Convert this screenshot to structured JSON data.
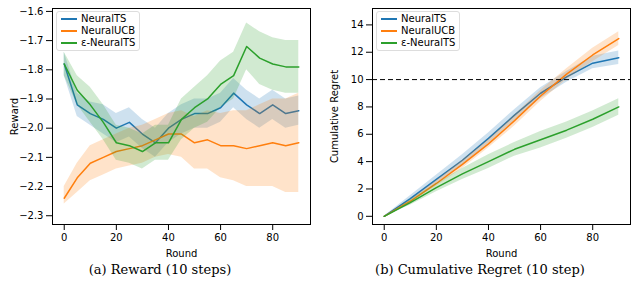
{
  "chart_data": [
    {
      "type": "line",
      "title": "(a) Reward (10 steps)",
      "x_label": "Round",
      "y_label": "Reward",
      "xlim": [
        -4.5,
        94.5
      ],
      "xticks": [
        0,
        20,
        40,
        60,
        80
      ],
      "ylim": [
        -2.33,
        -1.59
      ],
      "yticks": [
        {
          "value": -2.3,
          "label": "−2.3"
        },
        {
          "value": -2.2,
          "label": "−2.2"
        },
        {
          "value": -2.1,
          "label": "−2.1"
        },
        {
          "value": -2.0,
          "label": "−2.0"
        },
        {
          "value": -1.9,
          "label": "−1.9"
        },
        {
          "value": -1.8,
          "label": "−1.8"
        },
        {
          "value": -1.7,
          "label": "−1.7"
        },
        {
          "value": -1.6,
          "label": "−1.6"
        }
      ],
      "legend": "upper left",
      "x": [
        0,
        5,
        10,
        15,
        20,
        25,
        30,
        35,
        40,
        45,
        50,
        55,
        60,
        65,
        70,
        75,
        80,
        85,
        90
      ],
      "series": [
        {
          "name": "NeuralTS",
          "color": "#1f77b4",
          "values": [
            -1.78,
            -1.92,
            -1.95,
            -1.97,
            -2.0,
            -1.98,
            -2.02,
            -2.05,
            -2.0,
            -1.97,
            -1.95,
            -1.95,
            -1.93,
            -1.88,
            -1.92,
            -1.95,
            -1.92,
            -1.95,
            -1.94
          ],
          "lower": [
            -1.82,
            -1.96,
            -1.99,
            -2.02,
            -2.05,
            -2.03,
            -2.07,
            -2.1,
            -2.05,
            -2.02,
            -2.0,
            -2.0,
            -1.98,
            -1.93,
            -1.97,
            -2.0,
            -1.97,
            -2.0,
            -1.99
          ],
          "upper": [
            -1.74,
            -1.88,
            -1.91,
            -1.92,
            -1.95,
            -1.93,
            -1.97,
            -2.0,
            -1.95,
            -1.92,
            -1.9,
            -1.9,
            -1.88,
            -1.83,
            -1.87,
            -1.9,
            -1.87,
            -1.9,
            -1.89
          ]
        },
        {
          "name": "NeuralUCB",
          "color": "#ff7f0e",
          "values": [
            -2.24,
            -2.17,
            -2.12,
            -2.1,
            -2.08,
            -2.07,
            -2.06,
            -2.04,
            -2.02,
            -2.02,
            -2.05,
            -2.04,
            -2.06,
            -2.06,
            -2.07,
            -2.06,
            -2.05,
            -2.06,
            -2.05
          ],
          "lower": [
            -2.26,
            -2.22,
            -2.18,
            -2.16,
            -2.14,
            -2.13,
            -2.12,
            -2.1,
            -2.09,
            -2.1,
            -2.14,
            -2.14,
            -2.17,
            -2.18,
            -2.2,
            -2.2,
            -2.2,
            -2.22,
            -2.22
          ],
          "upper": [
            -2.2,
            -2.12,
            -2.06,
            -2.04,
            -2.02,
            -2.0,
            -1.99,
            -1.97,
            -1.95,
            -1.94,
            -1.96,
            -1.94,
            -1.95,
            -1.94,
            -1.94,
            -1.92,
            -1.9,
            -1.9,
            -1.88
          ]
        },
        {
          "name": "ε-NeuralTS",
          "color": "#2ca02c",
          "values": [
            -1.78,
            -1.87,
            -1.92,
            -1.98,
            -2.05,
            -2.06,
            -2.08,
            -2.05,
            -2.05,
            -1.97,
            -1.93,
            -1.9,
            -1.85,
            -1.82,
            -1.72,
            -1.76,
            -1.78,
            -1.79,
            -1.79
          ],
          "lower": [
            -1.82,
            -1.92,
            -1.98,
            -2.04,
            -2.11,
            -2.12,
            -2.14,
            -2.11,
            -2.11,
            -2.04,
            -2.0,
            -1.98,
            -1.93,
            -1.9,
            -1.8,
            -1.85,
            -1.87,
            -1.88,
            -1.88
          ],
          "upper": [
            -1.74,
            -1.82,
            -1.86,
            -1.92,
            -1.99,
            -2.0,
            -2.02,
            -1.99,
            -1.99,
            -1.9,
            -1.86,
            -1.82,
            -1.77,
            -1.74,
            -1.64,
            -1.67,
            -1.69,
            -1.7,
            -1.7
          ]
        }
      ]
    },
    {
      "type": "line",
      "title": "(b) Cumulative Regret (10 step)",
      "x_label": "Round",
      "y_label": "Cumulative Regret",
      "xlim": [
        -4.5,
        94.5
      ],
      "xticks": [
        0,
        20,
        40,
        60,
        80
      ],
      "ylim": [
        -0.6,
        15.2
      ],
      "yticks": [
        0,
        2,
        4,
        6,
        8,
        10,
        12,
        14
      ],
      "legend": "upper left",
      "reference_line": {
        "value": 10,
        "line_style": "dashed"
      },
      "x": [
        0,
        10,
        20,
        30,
        40,
        50,
        60,
        70,
        80,
        90
      ],
      "series": [
        {
          "name": "NeuralTS",
          "color": "#1f77b4",
          "values": [
            0,
            1.3,
            2.7,
            4.1,
            5.7,
            7.4,
            9.0,
            10.2,
            11.2,
            11.6
          ],
          "lower": [
            0,
            1.1,
            2.4,
            3.7,
            5.3,
            7.0,
            8.6,
            9.8,
            10.8,
            11.1
          ],
          "upper": [
            0,
            1.5,
            3.0,
            4.5,
            6.1,
            7.8,
            9.4,
            10.6,
            11.7,
            12.1
          ]
        },
        {
          "name": "NeuralUCB",
          "color": "#ff7f0e",
          "values": [
            0,
            1.1,
            2.4,
            3.8,
            5.3,
            7.0,
            8.8,
            10.4,
            11.8,
            13.0
          ],
          "lower": [
            0,
            1.0,
            2.2,
            3.5,
            5.0,
            6.6,
            8.4,
            10.0,
            11.3,
            12.5
          ],
          "upper": [
            0,
            1.2,
            2.6,
            4.1,
            5.6,
            7.4,
            9.2,
            10.8,
            12.3,
            13.5
          ]
        },
        {
          "name": "ε-NeuralTS",
          "color": "#2ca02c",
          "values": [
            0,
            1.0,
            2.1,
            3.1,
            4.0,
            4.9,
            5.6,
            6.3,
            7.1,
            8.0
          ],
          "lower": [
            0,
            0.8,
            1.8,
            2.7,
            3.5,
            4.4,
            5.0,
            5.7,
            6.5,
            7.4
          ],
          "upper": [
            0,
            1.2,
            2.4,
            3.5,
            4.5,
            5.4,
            6.2,
            6.9,
            7.7,
            8.6
          ]
        }
      ]
    }
  ]
}
